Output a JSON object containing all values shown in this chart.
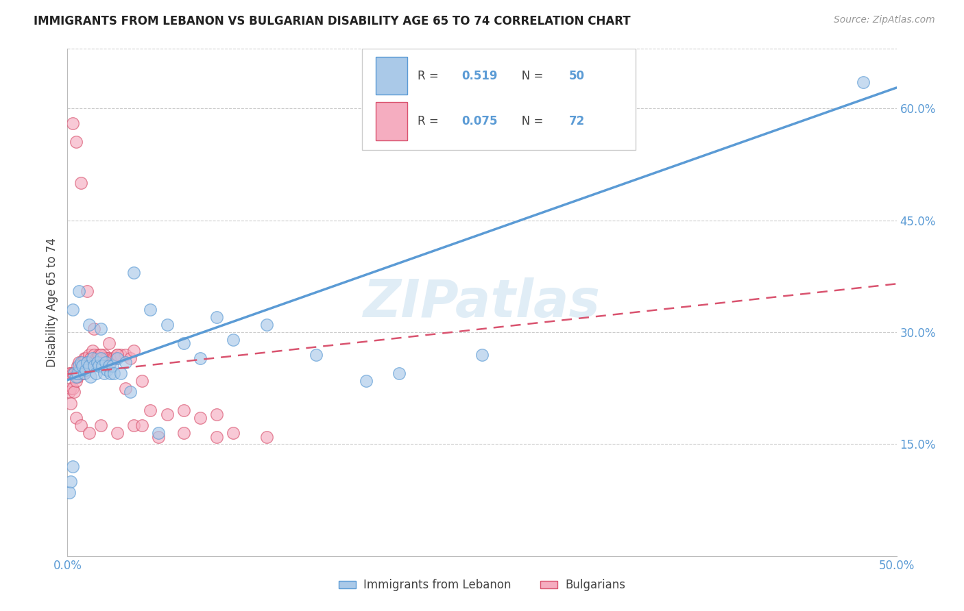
{
  "title": "IMMIGRANTS FROM LEBANON VS BULGARIAN DISABILITY AGE 65 TO 74 CORRELATION CHART",
  "source": "Source: ZipAtlas.com",
  "ylabel": "Disability Age 65 to 74",
  "x_min": 0.0,
  "x_max": 0.5,
  "y_min": 0.0,
  "y_max": 0.68,
  "x_ticks": [
    0.0,
    0.1,
    0.2,
    0.3,
    0.4,
    0.5
  ],
  "x_tick_labels": [
    "0.0%",
    "",
    "",
    "",
    "",
    "50.0%"
  ],
  "y_ticks": [
    0.15,
    0.3,
    0.45,
    0.6
  ],
  "y_tick_labels": [
    "15.0%",
    "30.0%",
    "45.0%",
    "60.0%"
  ],
  "legend_label1": "Immigrants from Lebanon",
  "legend_label2": "Bulgarians",
  "R1": "0.519",
  "N1": "50",
  "R2": "0.075",
  "N2": "72",
  "color1": "#aac9e8",
  "color2": "#f5adc0",
  "line_color1": "#5b9bd5",
  "line_color2": "#d9536f",
  "watermark": "ZIPatlas",
  "blue_line_x0": 0.0,
  "blue_line_y0": 0.236,
  "blue_line_x1": 0.5,
  "blue_line_y1": 0.628,
  "pink_line_x0": 0.0,
  "pink_line_y0": 0.244,
  "pink_line_x1": 0.5,
  "pink_line_y1": 0.365,
  "blue_scatter_x": [
    0.001,
    0.002,
    0.003,
    0.004,
    0.005,
    0.006,
    0.007,
    0.008,
    0.009,
    0.01,
    0.011,
    0.012,
    0.013,
    0.014,
    0.015,
    0.016,
    0.017,
    0.018,
    0.019,
    0.02,
    0.021,
    0.022,
    0.023,
    0.024,
    0.025,
    0.026,
    0.027,
    0.028,
    0.03,
    0.032,
    0.035,
    0.038,
    0.04,
    0.05,
    0.06,
    0.07,
    0.08,
    0.09,
    0.1,
    0.12,
    0.15,
    0.18,
    0.2,
    0.25,
    0.48,
    0.003,
    0.007,
    0.013,
    0.02,
    0.055
  ],
  "blue_scatter_y": [
    0.085,
    0.1,
    0.12,
    0.245,
    0.24,
    0.245,
    0.255,
    0.26,
    0.255,
    0.245,
    0.25,
    0.26,
    0.255,
    0.24,
    0.265,
    0.255,
    0.245,
    0.26,
    0.255,
    0.265,
    0.255,
    0.245,
    0.26,
    0.25,
    0.255,
    0.245,
    0.255,
    0.245,
    0.265,
    0.245,
    0.26,
    0.22,
    0.38,
    0.33,
    0.31,
    0.285,
    0.265,
    0.32,
    0.29,
    0.31,
    0.27,
    0.235,
    0.245,
    0.27,
    0.635,
    0.33,
    0.355,
    0.31,
    0.305,
    0.165
  ],
  "pink_scatter_x": [
    0.001,
    0.001,
    0.002,
    0.002,
    0.003,
    0.003,
    0.004,
    0.004,
    0.005,
    0.005,
    0.006,
    0.006,
    0.007,
    0.007,
    0.008,
    0.008,
    0.009,
    0.009,
    0.01,
    0.01,
    0.011,
    0.012,
    0.013,
    0.014,
    0.015,
    0.016,
    0.017,
    0.018,
    0.019,
    0.02,
    0.021,
    0.022,
    0.023,
    0.024,
    0.025,
    0.026,
    0.027,
    0.028,
    0.029,
    0.03,
    0.032,
    0.035,
    0.038,
    0.04,
    0.045,
    0.05,
    0.06,
    0.07,
    0.08,
    0.09,
    0.1,
    0.12,
    0.003,
    0.005,
    0.008,
    0.012,
    0.016,
    0.02,
    0.025,
    0.03,
    0.035,
    0.04,
    0.045,
    0.055,
    0.07,
    0.09,
    0.002,
    0.005,
    0.008,
    0.013,
    0.02,
    0.03
  ],
  "pink_scatter_y": [
    0.245,
    0.22,
    0.245,
    0.225,
    0.245,
    0.225,
    0.245,
    0.22,
    0.245,
    0.235,
    0.255,
    0.24,
    0.26,
    0.245,
    0.255,
    0.245,
    0.26,
    0.245,
    0.265,
    0.245,
    0.265,
    0.26,
    0.27,
    0.265,
    0.275,
    0.27,
    0.265,
    0.265,
    0.27,
    0.27,
    0.265,
    0.27,
    0.265,
    0.265,
    0.265,
    0.26,
    0.265,
    0.265,
    0.265,
    0.27,
    0.27,
    0.27,
    0.265,
    0.275,
    0.235,
    0.195,
    0.19,
    0.195,
    0.185,
    0.19,
    0.165,
    0.16,
    0.58,
    0.555,
    0.5,
    0.355,
    0.305,
    0.27,
    0.285,
    0.27,
    0.225,
    0.175,
    0.175,
    0.16,
    0.165,
    0.16,
    0.205,
    0.185,
    0.175,
    0.165,
    0.175,
    0.165
  ]
}
